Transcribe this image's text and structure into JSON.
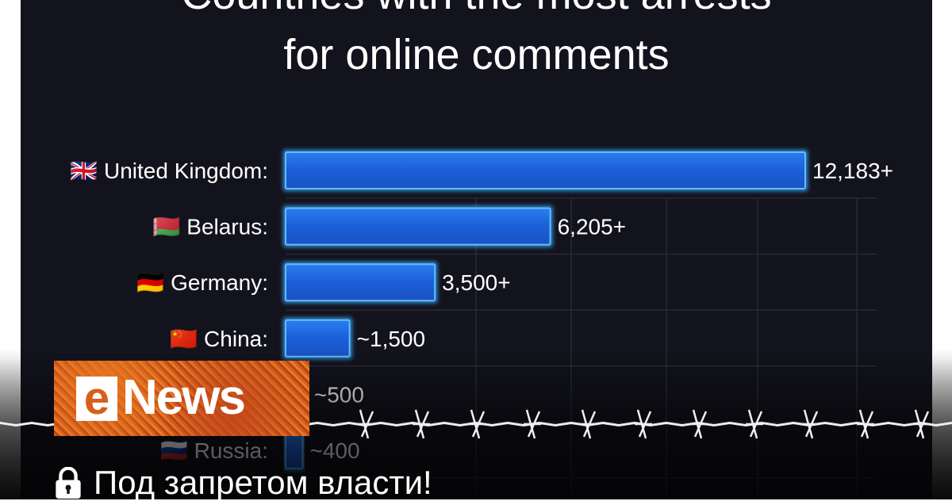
{
  "chart_data": {
    "type": "bar",
    "orientation": "horizontal",
    "title": [
      "Countries with the most arrests",
      "for online comments"
    ],
    "categories": [
      "United Kingdom:",
      "Belarus:",
      "Germany:",
      "China:",
      "",
      "Russia:"
    ],
    "values": [
      12183,
      6205,
      3500,
      1500,
      500,
      400
    ],
    "value_labels": [
      "12,183+",
      "6,205+",
      "3,500+",
      "~1,500",
      "~500",
      "~400"
    ],
    "flags": [
      "🇬🇧",
      "🇧🇾",
      "🇩🇪",
      "🇨🇳",
      "",
      "🇷🇺"
    ],
    "xlim": [
      0,
      12183
    ],
    "grid": true,
    "bar_color": "#1f6fe8",
    "bar_glow": "#3aa8ff"
  },
  "overlay": {
    "logo_text": "eNews",
    "caption": "Под запретом власти!",
    "caption_icon": "lock-icon"
  }
}
